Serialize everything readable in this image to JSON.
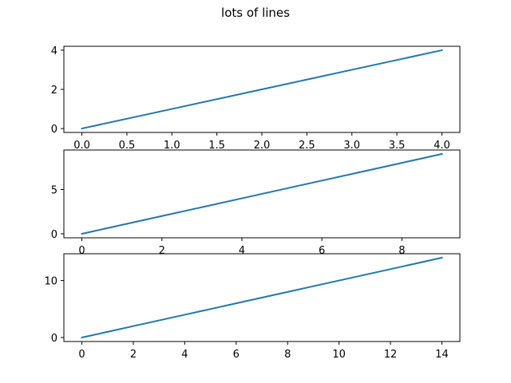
{
  "figure": {
    "title": "lots of lines"
  },
  "chart_data": [
    {
      "type": "line",
      "series": [
        {
          "x": [
            0,
            1,
            2,
            3,
            4
          ],
          "values": [
            0,
            1,
            2,
            3,
            4
          ],
          "color": "#1f77b4"
        }
      ],
      "xticks": [
        0.0,
        0.5,
        1.0,
        1.5,
        2.0,
        2.5,
        3.0,
        3.5,
        4.0
      ],
      "xtick_labels": [
        "0.0",
        "0.5",
        "1.0",
        "1.5",
        "2.0",
        "2.5",
        "3.0",
        "3.5",
        "4.0"
      ],
      "yticks": [
        0,
        2,
        4
      ],
      "ytick_labels": [
        "0",
        "2",
        "4"
      ],
      "xlim": [
        -0.2,
        4.2
      ],
      "ylim": [
        -0.2,
        4.2
      ],
      "grid": false,
      "xlabel": "",
      "ylabel": "",
      "title": ""
    },
    {
      "type": "line",
      "series": [
        {
          "x": [
            0,
            1,
            2,
            3,
            4,
            5,
            6,
            7,
            8,
            9
          ],
          "values": [
            0,
            1,
            2,
            3,
            4,
            5,
            6,
            7,
            8,
            9
          ],
          "color": "#1f77b4"
        }
      ],
      "xticks": [
        0,
        2,
        4,
        6,
        8
      ],
      "xtick_labels": [
        "0",
        "2",
        "4",
        "6",
        "8"
      ],
      "yticks": [
        0,
        5
      ],
      "ytick_labels": [
        "0",
        "5"
      ],
      "xlim": [
        -0.45,
        9.45
      ],
      "ylim": [
        -0.45,
        9.45
      ],
      "grid": false,
      "xlabel": "",
      "ylabel": "",
      "title": ""
    },
    {
      "type": "line",
      "series": [
        {
          "x": [
            0,
            1,
            2,
            3,
            4,
            5,
            6,
            7,
            8,
            9,
            10,
            11,
            12,
            13,
            14
          ],
          "values": [
            0,
            1,
            2,
            3,
            4,
            5,
            6,
            7,
            8,
            9,
            10,
            11,
            12,
            13,
            14
          ],
          "color": "#1f77b4"
        }
      ],
      "xticks": [
        0,
        2,
        4,
        6,
        8,
        10,
        12,
        14
      ],
      "xtick_labels": [
        "0",
        "2",
        "4",
        "6",
        "8",
        "10",
        "12",
        "14"
      ],
      "yticks": [
        0,
        10
      ],
      "ytick_labels": [
        "0",
        "10"
      ],
      "xlim": [
        -0.7,
        14.7
      ],
      "ylim": [
        -0.7,
        14.7
      ],
      "grid": false,
      "xlabel": "",
      "ylabel": "",
      "title": ""
    }
  ]
}
